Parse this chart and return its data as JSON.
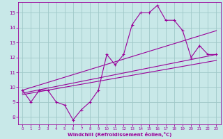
{
  "xlabel": "Windchill (Refroidissement éolien,°C)",
  "ylabel": "",
  "bg_color": "#c8e8e8",
  "grid_color": "#a0c8c8",
  "line_color": "#990099",
  "xlim": [
    -0.5,
    23.5
  ],
  "ylim": [
    7.5,
    15.7
  ],
  "yticks": [
    8,
    9,
    10,
    11,
    12,
    13,
    14,
    15
  ],
  "xticks": [
    0,
    1,
    2,
    3,
    4,
    5,
    6,
    7,
    8,
    9,
    10,
    11,
    12,
    13,
    14,
    15,
    16,
    17,
    18,
    19,
    20,
    21,
    22,
    23
  ],
  "main_data_x": [
    0,
    1,
    2,
    3,
    4,
    5,
    6,
    7,
    8,
    9,
    10,
    11,
    12,
    13,
    14,
    15,
    16,
    17,
    18,
    19,
    20,
    21,
    22,
    23
  ],
  "main_data_y": [
    9.8,
    9.0,
    9.8,
    9.8,
    9.0,
    8.8,
    7.8,
    8.5,
    9.0,
    9.8,
    12.2,
    11.5,
    12.2,
    14.2,
    15.0,
    15.0,
    15.5,
    14.5,
    14.5,
    13.8,
    12.0,
    12.8,
    12.2,
    12.2
  ],
  "reg_line1_x": [
    0,
    23
  ],
  "reg_line1_y": [
    9.6,
    12.2
  ],
  "reg_line2_x": [
    0,
    23
  ],
  "reg_line2_y": [
    9.8,
    13.8
  ],
  "reg_line3_x": [
    0,
    23
  ],
  "reg_line3_y": [
    9.5,
    11.8
  ]
}
